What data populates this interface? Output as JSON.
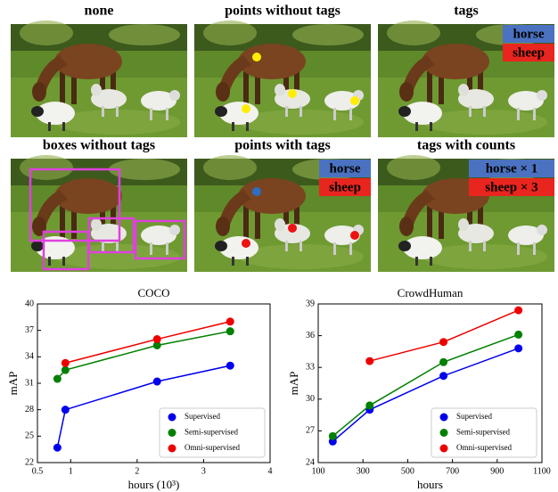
{
  "panels": [
    {
      "title": "none",
      "tags": []
    },
    {
      "title": "points without tags",
      "tags": []
    },
    {
      "title": "tags",
      "tags": [
        "horse",
        "sheep"
      ]
    },
    {
      "title": "boxes without tags",
      "tags": []
    },
    {
      "title": "points with tags",
      "tags": [
        "horse",
        "sheep"
      ]
    },
    {
      "title": "tags with counts",
      "tags": [
        "horse × 1",
        "sheep × 3"
      ]
    }
  ],
  "chart_data": [
    {
      "type": "line",
      "title": "COCO",
      "x_label": "hours (10³)",
      "y_label": "mAP",
      "x": [
        0.8,
        0.92,
        2.3,
        3.4
      ],
      "xlim": [
        0.5,
        4
      ],
      "xticks": [
        0.5,
        1,
        2,
        3,
        4
      ],
      "ylim": [
        22,
        40
      ],
      "yticks": [
        22,
        25,
        28,
        31,
        34,
        37,
        40
      ],
      "legend": "lower right",
      "series": [
        {
          "name": "Supervised",
          "color": "#0000ee",
          "values": [
            23.7,
            28,
            31.2,
            33
          ]
        },
        {
          "name": "Semi-supervised",
          "color": "#008000",
          "values": [
            31.5,
            32.5,
            35.3,
            36.9
          ]
        },
        {
          "name": "Omni-supervised",
          "color": "#ee0000",
          "values": [
            null,
            33.3,
            36,
            38
          ]
        }
      ]
    },
    {
      "type": "line",
      "title": "CrowdHuman",
      "x_label": "hours",
      "y_label": "mAP",
      "x": [
        165,
        330,
        660,
        995
      ],
      "xlim": [
        100,
        1100
      ],
      "xticks": [
        100,
        300,
        500,
        700,
        900,
        1100
      ],
      "ylim": [
        24,
        39
      ],
      "yticks": [
        24,
        27,
        30,
        33,
        36,
        39
      ],
      "legend": "lower right",
      "series": [
        {
          "name": "Supervised",
          "color": "#0000ee",
          "values": [
            26,
            29,
            32.2,
            34.8
          ]
        },
        {
          "name": "Semi-supervised",
          "color": "#008000",
          "values": [
            26.5,
            29.4,
            33.5,
            36.1
          ]
        },
        {
          "name": "Omni-supervised",
          "color": "#ee0000",
          "values": [
            null,
            33.6,
            35.4,
            38.4
          ]
        }
      ]
    }
  ]
}
